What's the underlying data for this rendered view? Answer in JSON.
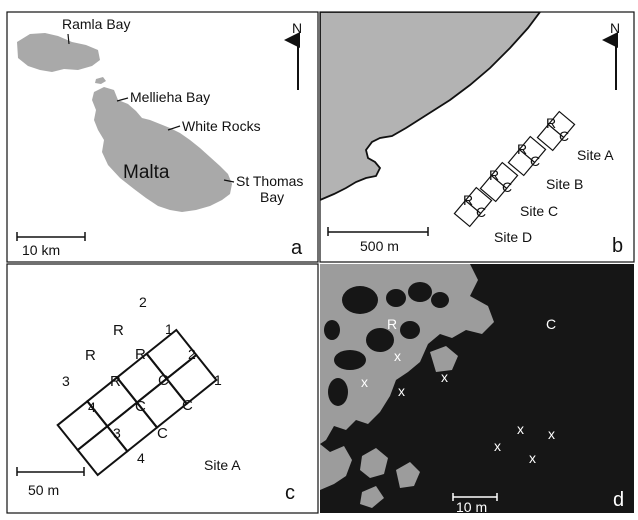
{
  "colors": {
    "land": "#a9a9a9",
    "sea_b": "#b3b3b3",
    "line": "#111111",
    "photo_dark": "#161616",
    "photo_light": "#9c9c9c"
  },
  "panels": {
    "a": {
      "letter": "a",
      "place_labels": [
        "Ramla Bay",
        "Mellieha Bay",
        "White Rocks",
        "St Thomas",
        "Bay"
      ],
      "island_label": "Malta",
      "north_label": "N",
      "scale_label": "10 km",
      "icons": [
        "north-arrow-icon",
        "scale-bar-icon"
      ]
    },
    "b": {
      "letter": "b",
      "north_label": "N",
      "scale_label": "500 m",
      "sites": [
        {
          "label": "Site A",
          "r": "R",
          "c": "C"
        },
        {
          "label": "Site B",
          "r": "R",
          "c": "C"
        },
        {
          "label": "Site C",
          "r": "R",
          "c": "C"
        },
        {
          "label": "Site D",
          "r": "R",
          "c": "C"
        }
      ]
    },
    "c": {
      "letter": "c",
      "site_label": "Site A",
      "scale_label": "50 m",
      "cells": [
        "R",
        "R",
        "R",
        "R",
        "C",
        "C",
        "C",
        "C"
      ],
      "block_numbers": [
        "2",
        "1",
        "2",
        "1",
        "3",
        "4",
        "3",
        "4"
      ]
    },
    "d": {
      "letter": "d",
      "r_label": "R",
      "c_label": "C",
      "marker": "x",
      "scale_label": "10 m"
    }
  }
}
